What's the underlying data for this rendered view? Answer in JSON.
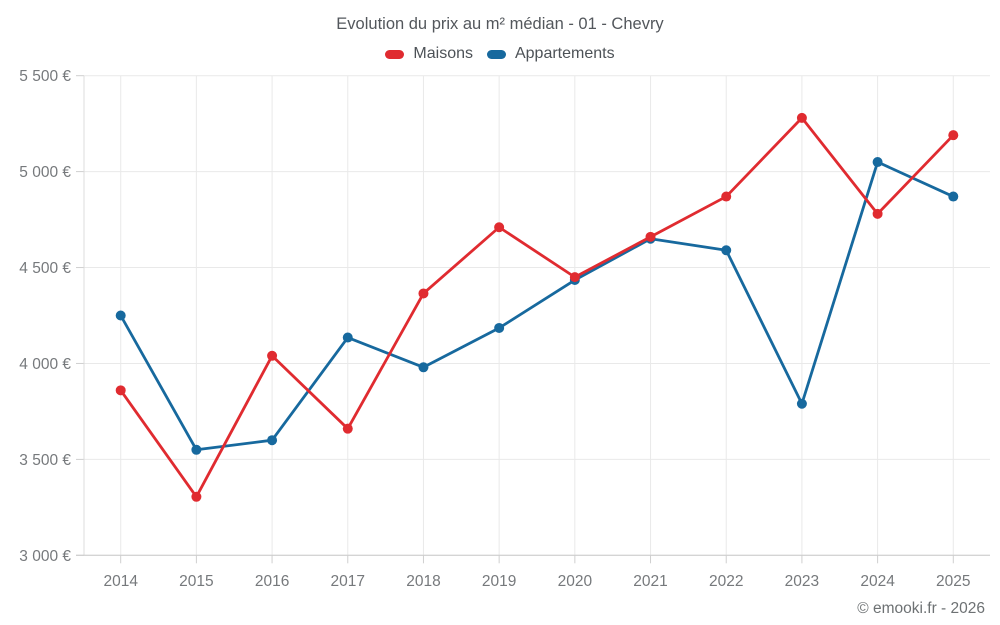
{
  "footer": "© emooki.fr - 2026",
  "chart_data": {
    "type": "line",
    "title": "Evolution du prix au m² médian - 01 - Chevry",
    "x": [
      "2014",
      "2015",
      "2016",
      "2017",
      "2018",
      "2019",
      "2020",
      "2021",
      "2022",
      "2023",
      "2024",
      "2025"
    ],
    "series": [
      {
        "name": "Maisons",
        "color": "#e02b30",
        "values": [
          3860,
          3305,
          4040,
          3660,
          4365,
          4710,
          4450,
          4660,
          4870,
          5280,
          4780,
          5190
        ]
      },
      {
        "name": "Appartements",
        "color": "#17699e",
        "values": [
          4250,
          3550,
          3600,
          4135,
          3980,
          4185,
          4435,
          4650,
          4590,
          3790,
          5050,
          4870
        ]
      }
    ],
    "ylim": [
      3000,
      5500
    ],
    "yticks": [
      {
        "value": 3000,
        "label": "3 000 €"
      },
      {
        "value": 3500,
        "label": "3 500 €"
      },
      {
        "value": 4000,
        "label": "4 000 €"
      },
      {
        "value": 4500,
        "label": "4 500 €"
      },
      {
        "value": 5000,
        "label": "5 000 €"
      },
      {
        "value": 5500,
        "label": "5 500 €"
      }
    ],
    "grid": true,
    "legend_position": "top",
    "xlabel": "",
    "ylabel": ""
  }
}
